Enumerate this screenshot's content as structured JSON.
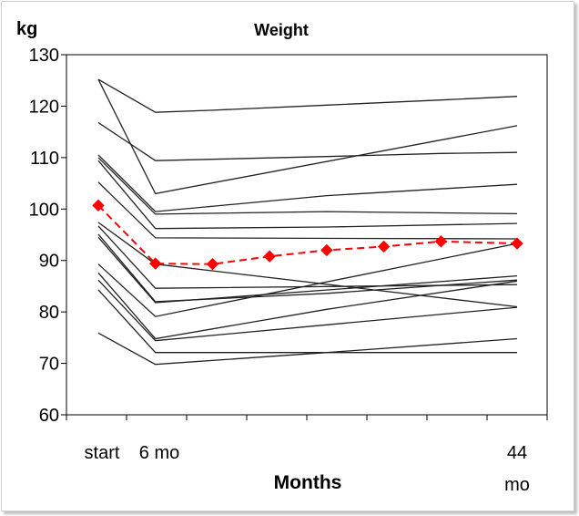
{
  "chart_data": {
    "type": "line",
    "title": "Weight",
    "ylabel": "kg",
    "xlabel": "Months",
    "ylim": [
      60,
      130
    ],
    "yticks": [
      60,
      70,
      80,
      90,
      100,
      110,
      120,
      130
    ],
    "x_tick_labels": [
      "start",
      "6 mo",
      "44",
      "mo"
    ],
    "x": [
      0,
      6,
      12,
      18,
      24,
      30,
      36,
      44
    ],
    "grid": false,
    "individual_series": [
      {
        "x": [
          0,
          6,
          12,
          24,
          36,
          44
        ],
        "values": [
          125.2,
          118.8,
          119.2,
          120.2,
          121.2,
          121.9
        ]
      },
      {
        "x": [
          0,
          6,
          44
        ],
        "values": [
          125.2,
          103.0,
          116.2
        ]
      },
      {
        "x": [
          0,
          6,
          24,
          36,
          44
        ],
        "values": [
          116.8,
          109.4,
          110.2,
          110.8,
          111.0
        ]
      },
      {
        "x": [
          0,
          6,
          24,
          44
        ],
        "values": [
          110.5,
          99.5,
          102.6,
          104.8
        ]
      },
      {
        "x": [
          0,
          6,
          24,
          44
        ],
        "values": [
          110.0,
          99.0,
          99.5,
          99.1
        ]
      },
      {
        "x": [
          0,
          6,
          24,
          44
        ],
        "values": [
          109.4,
          96.2,
          96.5,
          97.2
        ]
      },
      {
        "x": [
          0,
          6,
          44
        ],
        "values": [
          105.2,
          94.4,
          94.2
        ]
      },
      {
        "x": [
          0,
          6,
          44
        ],
        "values": [
          97.4,
          89.3,
          81.0
        ]
      },
      {
        "x": [
          0,
          6,
          44
        ],
        "values": [
          96.7,
          84.6,
          85.3
        ]
      },
      {
        "x": [
          0,
          6,
          24,
          44
        ],
        "values": [
          95.1,
          82.0,
          83.6,
          86.2
        ]
      },
      {
        "x": [
          0,
          6,
          44
        ],
        "values": [
          94.5,
          81.8,
          87.0
        ]
      },
      {
        "x": [
          0,
          6,
          44
        ],
        "values": [
          89.3,
          79.1,
          93.3
        ]
      },
      {
        "x": [
          0,
          6,
          24,
          44
        ],
        "values": [
          87.6,
          74.8,
          80.5,
          86.0
        ]
      },
      {
        "x": [
          0,
          6,
          24,
          44
        ],
        "values": [
          86.2,
          74.4,
          77.5,
          80.9
        ]
      },
      {
        "x": [
          0,
          6,
          24,
          36,
          44
        ],
        "values": [
          84.3,
          72.1,
          72.1,
          72.1,
          72.1
        ]
      },
      {
        "x": [
          0,
          6,
          24,
          44
        ],
        "values": [
          75.9,
          69.8,
          72.1,
          74.8
        ]
      }
    ],
    "series": [
      {
        "values": [
          100.7,
          89.4,
          89.3,
          90.8,
          92.0,
          92.7,
          93.7,
          93.3
        ],
        "color": "#ff0000",
        "line_style": "dashed",
        "marker": "diamond"
      }
    ]
  }
}
